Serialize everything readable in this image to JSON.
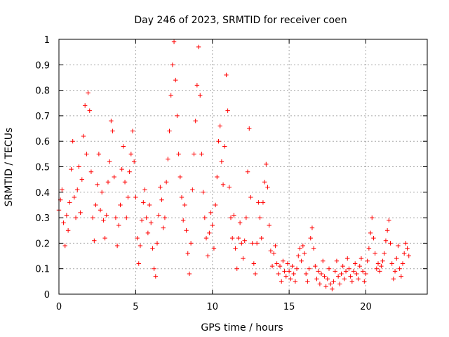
{
  "chart_data": {
    "type": "scatter",
    "title": "Day 246 of 2023, SRMTID for receiver coen",
    "xlabel": "GPS time / hours",
    "ylabel": "SRMTID / TECUs",
    "xlim": [
      0,
      24
    ],
    "ylim": [
      0,
      1
    ],
    "x_ticks": [
      0,
      5,
      10,
      15,
      20
    ],
    "x_tick_labels": [
      "0",
      "5",
      "10",
      "15",
      "20"
    ],
    "y_ticks": [
      0,
      0.1,
      0.2,
      0.3,
      0.4,
      0.5,
      0.6,
      0.7,
      0.8,
      0.9,
      1
    ],
    "y_tick_labels": [
      "0",
      "0.1",
      "0.2",
      "0.3",
      "0.4",
      "0.5",
      "0.6",
      "0.7",
      "0.8",
      "0.9",
      "1"
    ],
    "grid": true,
    "marker": "+",
    "marker_color": "#ff0000",
    "series": [
      {
        "name": "SRMTID",
        "points": [
          [
            0.0,
            0.33
          ],
          [
            0.1,
            0.37
          ],
          [
            0.2,
            0.41
          ],
          [
            0.3,
            0.28
          ],
          [
            0.4,
            0.19
          ],
          [
            0.5,
            0.31
          ],
          [
            0.6,
            0.25
          ],
          [
            0.7,
            0.36
          ],
          [
            0.8,
            0.49
          ],
          [
            0.9,
            0.6
          ],
          [
            1.0,
            0.38
          ],
          [
            1.1,
            0.3
          ],
          [
            1.2,
            0.41
          ],
          [
            1.3,
            0.5
          ],
          [
            1.4,
            0.32
          ],
          [
            1.5,
            0.45
          ],
          [
            1.6,
            0.62
          ],
          [
            1.7,
            0.74
          ],
          [
            1.8,
            0.55
          ],
          [
            1.9,
            0.79
          ],
          [
            2.0,
            0.72
          ],
          [
            2.1,
            0.48
          ],
          [
            2.2,
            0.3
          ],
          [
            2.3,
            0.21
          ],
          [
            2.4,
            0.35
          ],
          [
            2.5,
            0.43
          ],
          [
            2.6,
            0.55
          ],
          [
            2.7,
            0.33
          ],
          [
            2.8,
            0.4
          ],
          [
            2.9,
            0.29
          ],
          [
            3.0,
            0.22
          ],
          [
            3.1,
            0.31
          ],
          [
            3.2,
            0.44
          ],
          [
            3.3,
            0.52
          ],
          [
            3.4,
            0.68
          ],
          [
            3.5,
            0.64
          ],
          [
            3.6,
            0.46
          ],
          [
            3.7,
            0.3
          ],
          [
            3.8,
            0.19
          ],
          [
            3.9,
            0.27
          ],
          [
            4.0,
            0.35
          ],
          [
            4.1,
            0.49
          ],
          [
            4.2,
            0.58
          ],
          [
            4.3,
            0.44
          ],
          [
            4.4,
            0.3
          ],
          [
            4.5,
            0.38
          ],
          [
            4.6,
            0.48
          ],
          [
            4.7,
            0.55
          ],
          [
            4.8,
            0.64
          ],
          [
            4.9,
            0.52
          ],
          [
            5.0,
            0.38
          ],
          [
            5.1,
            0.22
          ],
          [
            5.2,
            0.12
          ],
          [
            5.3,
            0.19
          ],
          [
            5.4,
            0.29
          ],
          [
            5.5,
            0.36
          ],
          [
            5.6,
            0.41
          ],
          [
            5.7,
            0.3
          ],
          [
            5.8,
            0.24
          ],
          [
            5.9,
            0.35
          ],
          [
            6.0,
            0.28
          ],
          [
            6.1,
            0.18
          ],
          [
            6.2,
            0.1
          ],
          [
            6.3,
            0.07
          ],
          [
            6.4,
            0.2
          ],
          [
            6.5,
            0.31
          ],
          [
            6.6,
            0.42
          ],
          [
            6.7,
            0.37
          ],
          [
            6.8,
            0.26
          ],
          [
            6.9,
            0.3
          ],
          [
            7.0,
            0.44
          ],
          [
            7.1,
            0.53
          ],
          [
            7.2,
            0.64
          ],
          [
            7.3,
            0.78
          ],
          [
            7.4,
            0.9
          ],
          [
            7.5,
            0.99
          ],
          [
            7.6,
            0.84
          ],
          [
            7.7,
            0.7
          ],
          [
            7.8,
            0.55
          ],
          [
            7.9,
            0.46
          ],
          [
            8.0,
            0.38
          ],
          [
            8.1,
            0.29
          ],
          [
            8.2,
            0.35
          ],
          [
            8.3,
            0.25
          ],
          [
            8.4,
            0.16
          ],
          [
            8.5,
            0.08
          ],
          [
            8.6,
            0.2
          ],
          [
            8.7,
            0.41
          ],
          [
            8.8,
            0.55
          ],
          [
            8.9,
            0.68
          ],
          [
            9.0,
            0.82
          ],
          [
            9.1,
            0.97
          ],
          [
            9.2,
            0.78
          ],
          [
            9.3,
            0.55
          ],
          [
            9.4,
            0.4
          ],
          [
            9.5,
            0.3
          ],
          [
            9.6,
            0.22
          ],
          [
            9.7,
            0.15
          ],
          [
            9.8,
            0.24
          ],
          [
            9.9,
            0.32
          ],
          [
            10.0,
            0.27
          ],
          [
            10.1,
            0.18
          ],
          [
            10.2,
            0.35
          ],
          [
            10.3,
            0.46
          ],
          [
            10.4,
            0.6
          ],
          [
            10.5,
            0.66
          ],
          [
            10.6,
            0.52
          ],
          [
            10.7,
            0.43
          ],
          [
            10.8,
            0.58
          ],
          [
            10.9,
            0.86
          ],
          [
            11.0,
            0.72
          ],
          [
            11.1,
            0.42
          ],
          [
            11.2,
            0.3
          ],
          [
            11.3,
            0.22
          ],
          [
            11.4,
            0.31
          ],
          [
            11.5,
            0.18
          ],
          [
            11.6,
            0.1
          ],
          [
            11.7,
            0.22
          ],
          [
            11.8,
            0.28
          ],
          [
            11.9,
            0.2
          ],
          [
            12.0,
            0.14
          ],
          [
            12.1,
            0.21
          ],
          [
            12.2,
            0.3
          ],
          [
            12.3,
            0.48
          ],
          [
            12.4,
            0.65
          ],
          [
            12.5,
            0.38
          ],
          [
            12.6,
            0.2
          ],
          [
            12.7,
            0.12
          ],
          [
            12.8,
            0.08
          ],
          [
            12.9,
            0.2
          ],
          [
            13.0,
            0.36
          ],
          [
            13.1,
            0.3
          ],
          [
            13.2,
            0.22
          ],
          [
            13.3,
            0.36
          ],
          [
            13.4,
            0.44
          ],
          [
            13.5,
            0.51
          ],
          [
            13.6,
            0.42
          ],
          [
            13.7,
            0.27
          ],
          [
            13.8,
            0.17
          ],
          [
            13.9,
            0.11
          ],
          [
            14.0,
            0.16
          ],
          [
            14.1,
            0.19
          ],
          [
            14.2,
            0.12
          ],
          [
            14.3,
            0.08
          ],
          [
            14.4,
            0.11
          ],
          [
            14.5,
            0.05
          ],
          [
            14.6,
            0.13
          ],
          [
            14.7,
            0.09
          ],
          [
            14.8,
            0.07
          ],
          [
            14.9,
            0.12
          ],
          [
            15.0,
            0.09
          ],
          [
            15.1,
            0.06
          ],
          [
            15.2,
            0.11
          ],
          [
            15.3,
            0.08
          ],
          [
            15.4,
            0.05
          ],
          [
            15.5,
            0.1
          ],
          [
            15.6,
            0.15
          ],
          [
            15.7,
            0.18
          ],
          [
            15.8,
            0.13
          ],
          [
            15.9,
            0.19
          ],
          [
            16.0,
            0.16
          ],
          [
            16.1,
            0.08
          ],
          [
            16.2,
            0.05
          ],
          [
            16.3,
            0.1
          ],
          [
            16.4,
            0.22
          ],
          [
            16.5,
            0.26
          ],
          [
            16.6,
            0.18
          ],
          [
            16.7,
            0.11
          ],
          [
            16.8,
            0.06
          ],
          [
            16.9,
            0.09
          ],
          [
            17.0,
            0.04
          ],
          [
            17.1,
            0.08
          ],
          [
            17.2,
            0.13
          ],
          [
            17.3,
            0.07
          ],
          [
            17.4,
            0.03
          ],
          [
            17.5,
            0.06
          ],
          [
            17.6,
            0.1
          ],
          [
            17.7,
            0.04
          ],
          [
            17.8,
            0.02
          ],
          [
            17.9,
            0.05
          ],
          [
            18.0,
            0.09
          ],
          [
            18.1,
            0.13
          ],
          [
            18.2,
            0.07
          ],
          [
            18.3,
            0.04
          ],
          [
            18.4,
            0.08
          ],
          [
            18.5,
            0.11
          ],
          [
            18.6,
            0.06
          ],
          [
            18.7,
            0.09
          ],
          [
            18.8,
            0.14
          ],
          [
            18.9,
            0.1
          ],
          [
            19.0,
            0.07
          ],
          [
            19.1,
            0.05
          ],
          [
            19.2,
            0.09
          ],
          [
            19.3,
            0.12
          ],
          [
            19.4,
            0.08
          ],
          [
            19.5,
            0.06
          ],
          [
            19.6,
            0.11
          ],
          [
            19.7,
            0.14
          ],
          [
            19.8,
            0.09
          ],
          [
            19.9,
            0.05
          ],
          [
            20.0,
            0.08
          ],
          [
            20.1,
            0.13
          ],
          [
            20.2,
            0.18
          ],
          [
            20.3,
            0.24
          ],
          [
            20.4,
            0.3
          ],
          [
            20.5,
            0.22
          ],
          [
            20.6,
            0.16
          ],
          [
            20.7,
            0.1
          ],
          [
            20.8,
            0.12
          ],
          [
            20.9,
            0.09
          ],
          [
            21.0,
            0.11
          ],
          [
            21.1,
            0.13
          ],
          [
            21.2,
            0.16
          ],
          [
            21.3,
            0.21
          ],
          [
            21.4,
            0.25
          ],
          [
            21.5,
            0.29
          ],
          [
            21.6,
            0.2
          ],
          [
            21.7,
            0.12
          ],
          [
            21.8,
            0.06
          ],
          [
            21.9,
            0.09
          ],
          [
            22.0,
            0.14
          ],
          [
            22.1,
            0.19
          ],
          [
            22.2,
            0.1
          ],
          [
            22.3,
            0.07
          ],
          [
            22.4,
            0.12
          ],
          [
            22.5,
            0.16
          ],
          [
            22.6,
            0.2
          ],
          [
            22.7,
            0.18
          ],
          [
            22.8,
            0.15
          ]
        ]
      }
    ]
  }
}
